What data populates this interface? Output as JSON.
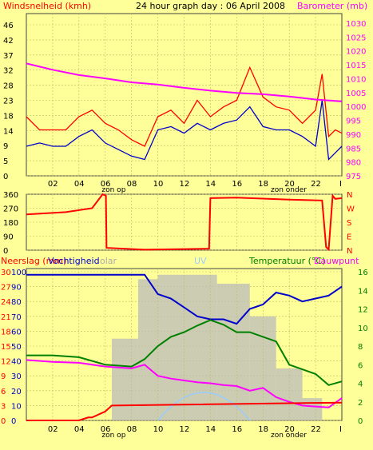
{
  "title": "24 hour graph day : 06 April 2008",
  "colors": {
    "background": "#FFFF99",
    "wind_gust": "#FF0000",
    "wind_avg": "#0000CC",
    "barometer": "#FF00FF",
    "direction": "#FF0000",
    "rain": "#FF0000",
    "humidity": "#0000CC",
    "temperature": "#008000",
    "dewpoint": "#FF00FF",
    "solar": "#BBBBBB",
    "uv": "#99CCFF"
  },
  "x_ticks": [
    "02",
    "04",
    "06",
    "08",
    "10",
    "12",
    "14",
    "16",
    "18",
    "20",
    "22"
  ],
  "sun_labels": {
    "sunrise": "zon op",
    "sunset": "zon onder"
  },
  "chart_data": [
    {
      "type": "line",
      "name": "wind_barometer",
      "left_label": "Windsnelheid (kmh)",
      "right_label": "Barometer (mb)",
      "left_ticks": [
        "46",
        "42",
        "37",
        "32",
        "28",
        "23",
        "18",
        "14",
        "9",
        "5",
        "0"
      ],
      "right_ticks": [
        "1030",
        "1025",
        "1020",
        "1015",
        "1010",
        "1005",
        "1000",
        "995",
        "990",
        "985",
        "980",
        "975"
      ],
      "ylim_left": [
        0,
        46
      ],
      "ylim_right": [
        975,
        1030
      ],
      "series": [
        {
          "key": "gust",
          "x": [
            0,
            1,
            2,
            3,
            4,
            5,
            6,
            7,
            8,
            9,
            10,
            11,
            12,
            13,
            14,
            15,
            16,
            17,
            18,
            19,
            20,
            21,
            22,
            22.5,
            23,
            23.5,
            24
          ],
          "values": [
            18,
            14,
            14,
            14,
            18,
            20,
            16,
            14,
            11,
            9,
            18,
            20,
            16,
            23,
            18,
            21,
            23,
            33,
            24,
            21,
            20,
            16,
            20,
            31,
            12,
            14,
            13
          ]
        },
        {
          "key": "avg",
          "x": [
            0,
            1,
            2,
            3,
            4,
            5,
            6,
            7,
            8,
            9,
            10,
            11,
            12,
            13,
            14,
            15,
            16,
            17,
            18,
            19,
            20,
            21,
            22,
            22.5,
            23,
            23.5,
            24
          ],
          "values": [
            9,
            10,
            9,
            9,
            12,
            14,
            10,
            8,
            6,
            5,
            14,
            15,
            13,
            16,
            14,
            16,
            17,
            21,
            15,
            14,
            14,
            12,
            9,
            23,
            5,
            7,
            9
          ]
        },
        {
          "key": "barometer",
          "x": [
            0,
            2,
            4,
            6,
            8,
            10,
            12,
            14,
            16,
            18,
            20,
            22,
            24
          ],
          "values": [
            1015.5,
            1013.2,
            1011.3,
            1010.1,
            1008.7,
            1007.9,
            1006.7,
            1005.7,
            1004.9,
            1004.4,
            1003.6,
            1002.5,
            1001.8
          ]
        }
      ]
    },
    {
      "type": "line",
      "name": "wind_direction",
      "left_ticks": [
        "360",
        "270",
        "180",
        "90",
        "0"
      ],
      "right_ticks": [
        "N",
        "W",
        "S",
        "E",
        "N"
      ],
      "ylim": [
        0,
        360
      ],
      "series": [
        {
          "key": "direction",
          "x": [
            0,
            3,
            5,
            5.8,
            6.05,
            6.1,
            9,
            13,
            13.9,
            14,
            16,
            20,
            22.5,
            22.8,
            23,
            23.3,
            23.5,
            24
          ],
          "values": [
            230,
            245,
            270,
            360,
            350,
            15,
            3,
            8,
            10,
            335,
            338,
            325,
            320,
            20,
            5,
            350,
            330,
            335
          ]
        }
      ]
    },
    {
      "type": "line",
      "name": "rain_humidity_temp",
      "labels": [
        "Neerslag (mm)",
        "Vochtigheid",
        "olar",
        "UV",
        "Temperatuur (°C)",
        "Dauwpunt"
      ],
      "rain_ticks": [
        "30",
        "27",
        "24",
        "21",
        "18",
        "15",
        "12",
        "9",
        "6",
        "3",
        "0"
      ],
      "hum_ticks": [
        "100",
        "90",
        "80",
        "70",
        "60",
        "50",
        "40",
        "30",
        "20",
        "10",
        "0"
      ],
      "temp_ticks": [
        "16",
        "14",
        "12",
        "10",
        "8",
        "6",
        "4",
        "2",
        "0"
      ],
      "ylim_rain": [
        0,
        30
      ],
      "ylim_hum": [
        0,
        100
      ],
      "ylim_temp": [
        0,
        16
      ],
      "series": [
        {
          "key": "humidity",
          "x": [
            0,
            4,
            6,
            8,
            9,
            10,
            11,
            12,
            13,
            14,
            15,
            16,
            17,
            18,
            19,
            20,
            21,
            22,
            23,
            24
          ],
          "values": [
            98,
            98,
            98,
            98,
            98,
            85,
            82,
            76,
            70,
            68,
            68,
            65,
            75,
            78,
            86,
            84,
            80,
            82,
            84,
            90
          ]
        },
        {
          "key": "temperature",
          "x": [
            0,
            2,
            4,
            6,
            8,
            9,
            10,
            11,
            12,
            13,
            14,
            15,
            16,
            17,
            18,
            19,
            20,
            21,
            22,
            23,
            24
          ],
          "values": [
            7,
            7,
            6.8,
            6,
            5.8,
            6.6,
            8,
            9,
            9.5,
            10.2,
            10.8,
            10.3,
            9.5,
            9.5,
            9,
            8.5,
            6,
            5.5,
            5,
            3.8,
            4.2
          ]
        },
        {
          "key": "dewpoint",
          "x": [
            0,
            2,
            4,
            6,
            8,
            9,
            10,
            11,
            12,
            13,
            14,
            15,
            16,
            17,
            18,
            19,
            20,
            21,
            22,
            23,
            24
          ],
          "values": [
            6.5,
            6.3,
            6.2,
            5.8,
            5.6,
            6,
            4.8,
            4.5,
            4.3,
            4.1,
            4,
            3.8,
            3.7,
            3.2,
            3.5,
            2.5,
            2,
            1.6,
            1.5,
            1.4,
            2.4
          ]
        },
        {
          "key": "rain",
          "x": [
            0,
            4,
            4.7,
            5,
            6,
            6.5,
            24
          ],
          "values": [
            0,
            0,
            0.6,
            0.6,
            1.8,
            3,
            3.6
          ]
        }
      ]
    }
  ]
}
